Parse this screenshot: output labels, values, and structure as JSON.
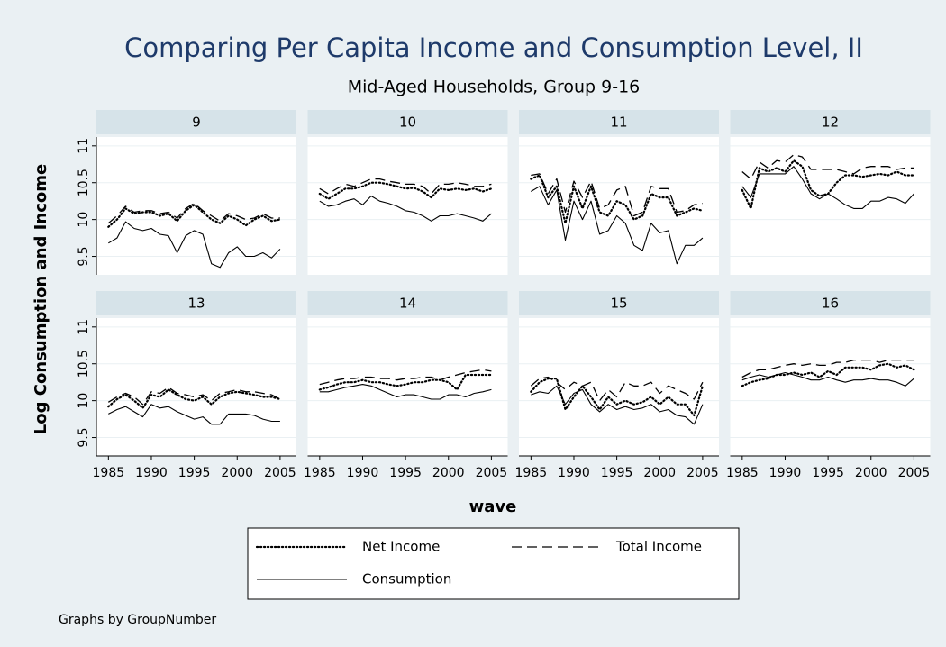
{
  "title": "Comparing Per Capita Income and Consumption Level, II",
  "subtitle": "Mid-Aged Households, Group 9-16",
  "y_label": "Log Consumption and Income",
  "x_label": "wave",
  "note": "Graphs by GroupNumber",
  "chart_data": [
    {
      "type": "line",
      "title": "9",
      "x": [
        1985,
        1986,
        1987,
        1988,
        1989,
        1990,
        1991,
        1992,
        1993,
        1994,
        1995,
        1996,
        1997,
        1998,
        1999,
        2000,
        2001,
        2002,
        2003,
        2004,
        2005
      ],
      "xlim": [
        1983.6,
        2006.9
      ],
      "xticks": [
        1985,
        1990,
        1995,
        2000,
        2005
      ],
      "ylim": [
        9.25,
        11.12
      ],
      "yticks": [
        9.5,
        10,
        10.5,
        11
      ],
      "grid": true,
      "series": [
        {
          "name": "Net Income",
          "color": "#000000",
          "linestyle": "dotted",
          "values": [
            9.9,
            10.0,
            10.15,
            10.08,
            10.1,
            10.1,
            10.05,
            10.08,
            9.98,
            10.12,
            10.2,
            10.1,
            10.0,
            9.95,
            10.05,
            10.0,
            9.92,
            10.0,
            10.05,
            9.98,
            10.0
          ]
        },
        {
          "name": "Total Income",
          "color": "#000000",
          "linestyle": "dashed",
          "values": [
            9.95,
            10.05,
            10.18,
            10.1,
            10.12,
            10.12,
            10.08,
            10.1,
            10.02,
            10.15,
            10.22,
            10.12,
            10.05,
            9.98,
            10.08,
            10.05,
            10.0,
            10.02,
            10.08,
            10.02,
            10.02
          ]
        },
        {
          "name": "Consumption",
          "color": "#000000",
          "linestyle": "solid",
          "values": [
            9.68,
            9.75,
            9.97,
            9.88,
            9.85,
            9.88,
            9.8,
            9.78,
            9.55,
            9.78,
            9.85,
            9.8,
            9.4,
            9.35,
            9.55,
            9.63,
            9.5,
            9.5,
            9.55,
            9.48,
            9.6
          ]
        }
      ]
    },
    {
      "type": "line",
      "title": "10",
      "x": [
        1985,
        1986,
        1987,
        1988,
        1989,
        1990,
        1991,
        1992,
        1993,
        1994,
        1995,
        1996,
        1997,
        1998,
        1999,
        2000,
        2001,
        2002,
        2003,
        2004,
        2005
      ],
      "xlim": [
        1983.6,
        2006.9
      ],
      "xticks": [
        1985,
        1990,
        1995,
        2000,
        2005
      ],
      "ylim": [
        9.25,
        11.12
      ],
      "yticks": [
        9.5,
        10,
        10.5,
        11
      ],
      "grid": true,
      "series": [
        {
          "name": "Net Income",
          "color": "#000000",
          "linestyle": "dotted",
          "values": [
            10.35,
            10.28,
            10.35,
            10.42,
            10.42,
            10.45,
            10.5,
            10.5,
            10.48,
            10.45,
            10.42,
            10.43,
            10.38,
            10.3,
            10.42,
            10.4,
            10.42,
            10.4,
            10.42,
            10.38,
            10.42
          ]
        },
        {
          "name": "Total Income",
          "color": "#000000",
          "linestyle": "dashed",
          "values": [
            10.42,
            10.35,
            10.42,
            10.48,
            10.45,
            10.5,
            10.55,
            10.55,
            10.52,
            10.5,
            10.48,
            10.48,
            10.45,
            10.35,
            10.48,
            10.48,
            10.5,
            10.48,
            10.45,
            10.45,
            10.48
          ]
        },
        {
          "name": "Consumption",
          "color": "#000000",
          "linestyle": "solid",
          "values": [
            10.25,
            10.18,
            10.2,
            10.25,
            10.28,
            10.2,
            10.32,
            10.25,
            10.22,
            10.18,
            10.12,
            10.1,
            10.05,
            9.98,
            10.05,
            10.05,
            10.08,
            10.05,
            10.02,
            9.98,
            10.08
          ]
        }
      ]
    },
    {
      "type": "line",
      "title": "11",
      "x": [
        1985,
        1986,
        1987,
        1988,
        1989,
        1990,
        1991,
        1992,
        1993,
        1994,
        1995,
        1996,
        1997,
        1998,
        1999,
        2000,
        2001,
        2002,
        2003,
        2004,
        2005
      ],
      "xlim": [
        1983.6,
        2006.9
      ],
      "xticks": [
        1985,
        1990,
        1995,
        2000,
        2005
      ],
      "ylim": [
        9.25,
        11.12
      ],
      "yticks": [
        9.5,
        10,
        10.5,
        11
      ],
      "grid": true,
      "series": [
        {
          "name": "Net Income",
          "color": "#000000",
          "linestyle": "dotted",
          "values": [
            10.55,
            10.6,
            10.3,
            10.45,
            9.95,
            10.45,
            10.15,
            10.45,
            10.1,
            10.05,
            10.25,
            10.2,
            10.0,
            10.05,
            10.35,
            10.3,
            10.3,
            10.05,
            10.1,
            10.15,
            10.12
          ]
        },
        {
          "name": "Total Income",
          "color": "#000000",
          "linestyle": "dashed",
          "values": [
            10.6,
            10.62,
            10.35,
            10.55,
            10.1,
            10.52,
            10.3,
            10.52,
            10.15,
            10.2,
            10.4,
            10.45,
            10.05,
            10.1,
            10.45,
            10.42,
            10.42,
            10.1,
            10.12,
            10.2,
            10.22
          ]
        },
        {
          "name": "Consumption",
          "color": "#000000",
          "linestyle": "solid",
          "values": [
            10.38,
            10.45,
            10.2,
            10.4,
            9.72,
            10.25,
            10.0,
            10.25,
            9.8,
            9.85,
            10.05,
            9.95,
            9.65,
            9.58,
            9.95,
            9.82,
            9.85,
            9.4,
            9.65,
            9.65,
            9.75
          ]
        }
      ]
    },
    {
      "type": "line",
      "title": "12",
      "x": [
        1985,
        1986,
        1987,
        1988,
        1989,
        1990,
        1991,
        1992,
        1993,
        1994,
        1995,
        1996,
        1997,
        1998,
        1999,
        2000,
        2001,
        2002,
        2003,
        2004,
        2005
      ],
      "xlim": [
        1983.6,
        2006.9
      ],
      "xticks": [
        1985,
        1990,
        1995,
        2000,
        2005
      ],
      "ylim": [
        9.25,
        11.12
      ],
      "yticks": [
        9.5,
        10,
        10.5,
        11
      ],
      "grid": true,
      "series": [
        {
          "name": "Net Income",
          "color": "#000000",
          "linestyle": "dotted",
          "values": [
            10.4,
            10.15,
            10.7,
            10.65,
            10.7,
            10.65,
            10.8,
            10.72,
            10.4,
            10.32,
            10.35,
            10.5,
            10.6,
            10.6,
            10.58,
            10.6,
            10.62,
            10.6,
            10.65,
            10.6,
            10.6
          ]
        },
        {
          "name": "Total Income",
          "color": "#000000",
          "linestyle": "dashed",
          "values": [
            10.65,
            10.55,
            10.78,
            10.7,
            10.8,
            10.78,
            10.88,
            10.85,
            10.68,
            10.68,
            10.68,
            10.68,
            10.65,
            10.62,
            10.7,
            10.72,
            10.72,
            10.72,
            10.68,
            10.7,
            10.7
          ]
        },
        {
          "name": "Consumption",
          "color": "#000000",
          "linestyle": "solid",
          "values": [
            10.45,
            10.3,
            10.62,
            10.62,
            10.62,
            10.62,
            10.72,
            10.55,
            10.35,
            10.28,
            10.35,
            10.28,
            10.2,
            10.15,
            10.15,
            10.25,
            10.25,
            10.3,
            10.28,
            10.22,
            10.35
          ]
        }
      ]
    },
    {
      "type": "line",
      "title": "13",
      "x": [
        1985,
        1986,
        1987,
        1988,
        1989,
        1990,
        1991,
        1992,
        1993,
        1994,
        1995,
        1996,
        1997,
        1998,
        1999,
        2000,
        2001,
        2002,
        2003,
        2004,
        2005
      ],
      "xlim": [
        1983.6,
        2006.9
      ],
      "xticks": [
        1985,
        1990,
        1995,
        2000,
        2005
      ],
      "ylim": [
        9.25,
        11.12
      ],
      "yticks": [
        9.5,
        10,
        10.5,
        11
      ],
      "grid": true,
      "series": [
        {
          "name": "Net Income",
          "color": "#000000",
          "linestyle": "dotted",
          "values": [
            9.92,
            10.02,
            10.08,
            10.0,
            9.9,
            10.08,
            10.05,
            10.15,
            10.08,
            10.02,
            10.0,
            10.05,
            9.95,
            10.05,
            10.1,
            10.12,
            10.1,
            10.08,
            10.05,
            10.05,
            10.02
          ]
        },
        {
          "name": "Total Income",
          "color": "#000000",
          "linestyle": "dashed",
          "values": [
            9.98,
            10.05,
            10.1,
            10.05,
            9.95,
            10.12,
            10.1,
            10.18,
            10.1,
            10.08,
            10.05,
            10.08,
            10.0,
            10.1,
            10.12,
            10.15,
            10.12,
            10.12,
            10.1,
            10.08,
            10.02
          ]
        },
        {
          "name": "Consumption",
          "color": "#000000",
          "linestyle": "solid",
          "values": [
            9.82,
            9.88,
            9.92,
            9.85,
            9.78,
            9.95,
            9.9,
            9.92,
            9.85,
            9.8,
            9.75,
            9.78,
            9.68,
            9.68,
            9.82,
            9.82,
            9.82,
            9.8,
            9.75,
            9.72,
            9.72
          ]
        }
      ]
    },
    {
      "type": "line",
      "title": "14",
      "x": [
        1985,
        1986,
        1987,
        1988,
        1989,
        1990,
        1991,
        1992,
        1993,
        1994,
        1995,
        1996,
        1997,
        1998,
        1999,
        2000,
        2001,
        2002,
        2003,
        2004,
        2005
      ],
      "xlim": [
        1983.6,
        2006.9
      ],
      "xticks": [
        1985,
        1990,
        1995,
        2000,
        2005
      ],
      "ylim": [
        9.25,
        11.12
      ],
      "yticks": [
        9.5,
        10,
        10.5,
        11
      ],
      "grid": true,
      "series": [
        {
          "name": "Net Income",
          "color": "#000000",
          "linestyle": "dotted",
          "values": [
            10.15,
            10.18,
            10.22,
            10.25,
            10.25,
            10.28,
            10.25,
            10.25,
            10.22,
            10.2,
            10.22,
            10.25,
            10.25,
            10.28,
            10.28,
            10.25,
            10.15,
            10.35,
            10.35,
            10.35,
            10.35
          ]
        },
        {
          "name": "Total Income",
          "color": "#000000",
          "linestyle": "dashed",
          "values": [
            10.22,
            10.25,
            10.28,
            10.3,
            10.3,
            10.32,
            10.32,
            10.3,
            10.3,
            10.28,
            10.3,
            10.3,
            10.32,
            10.32,
            10.28,
            10.32,
            10.35,
            10.38,
            10.4,
            10.42,
            10.4
          ]
        },
        {
          "name": "Consumption",
          "color": "#000000",
          "linestyle": "solid",
          "values": [
            10.12,
            10.12,
            10.15,
            10.18,
            10.2,
            10.22,
            10.2,
            10.15,
            10.1,
            10.05,
            10.08,
            10.08,
            10.05,
            10.02,
            10.02,
            10.08,
            10.08,
            10.05,
            10.1,
            10.12,
            10.15
          ]
        }
      ]
    },
    {
      "type": "line",
      "title": "15",
      "x": [
        1985,
        1986,
        1987,
        1988,
        1989,
        1990,
        1991,
        1992,
        1993,
        1994,
        1995,
        1996,
        1997,
        1998,
        1999,
        2000,
        2001,
        2002,
        2003,
        2004,
        2005
      ],
      "xlim": [
        1983.6,
        2006.9
      ],
      "xticks": [
        1985,
        1990,
        1995,
        2000,
        2005
      ],
      "ylim": [
        9.25,
        11.12
      ],
      "yticks": [
        9.5,
        10,
        10.5,
        11
      ],
      "grid": true,
      "series": [
        {
          "name": "Net Income",
          "color": "#000000",
          "linestyle": "dotted",
          "values": [
            10.12,
            10.25,
            10.3,
            10.3,
            9.88,
            10.05,
            10.2,
            10.05,
            9.88,
            10.05,
            9.95,
            10.0,
            9.95,
            9.98,
            10.05,
            9.95,
            10.05,
            9.95,
            9.95,
            9.8,
            10.2
          ]
        },
        {
          "name": "Total Income",
          "color": "#000000",
          "linestyle": "dashed",
          "values": [
            10.2,
            10.3,
            10.32,
            10.25,
            10.15,
            10.25,
            10.2,
            10.25,
            10.0,
            10.15,
            10.05,
            10.25,
            10.2,
            10.2,
            10.25,
            10.1,
            10.2,
            10.15,
            10.1,
            10.02,
            10.25
          ]
        },
        {
          "name": "Consumption",
          "color": "#000000",
          "linestyle": "solid",
          "values": [
            10.08,
            10.12,
            10.1,
            10.2,
            9.95,
            10.1,
            10.15,
            9.95,
            9.85,
            9.95,
            9.88,
            9.92,
            9.88,
            9.9,
            9.95,
            9.85,
            9.88,
            9.8,
            9.78,
            9.68,
            9.95
          ]
        }
      ]
    },
    {
      "type": "line",
      "title": "16",
      "x": [
        1985,
        1986,
        1987,
        1988,
        1989,
        1990,
        1991,
        1992,
        1993,
        1994,
        1995,
        1996,
        1997,
        1998,
        1999,
        2000,
        2001,
        2002,
        2003,
        2004,
        2005
      ],
      "xlim": [
        1983.6,
        2006.9
      ],
      "xticks": [
        1985,
        1990,
        1995,
        2000,
        2005
      ],
      "ylim": [
        9.25,
        11.12
      ],
      "yticks": [
        9.5,
        10,
        10.5,
        11
      ],
      "grid": true,
      "series": [
        {
          "name": "Net Income",
          "color": "#000000",
          "linestyle": "dotted",
          "values": [
            10.2,
            10.25,
            10.28,
            10.3,
            10.35,
            10.35,
            10.38,
            10.35,
            10.38,
            10.32,
            10.4,
            10.35,
            10.45,
            10.45,
            10.45,
            10.42,
            10.48,
            10.5,
            10.45,
            10.48,
            10.42
          ]
        },
        {
          "name": "Total Income",
          "color": "#000000",
          "linestyle": "dashed",
          "values": [
            10.32,
            10.38,
            10.42,
            10.42,
            10.45,
            10.48,
            10.5,
            10.48,
            10.5,
            10.48,
            10.48,
            10.52,
            10.52,
            10.55,
            10.55,
            10.55,
            10.52,
            10.55,
            10.55,
            10.55,
            10.55
          ]
        },
        {
          "name": "Consumption",
          "color": "#000000",
          "linestyle": "solid",
          "values": [
            10.28,
            10.32,
            10.35,
            10.32,
            10.35,
            10.38,
            10.35,
            10.32,
            10.28,
            10.28,
            10.32,
            10.28,
            10.25,
            10.28,
            10.28,
            10.3,
            10.28,
            10.28,
            10.25,
            10.2,
            10.3
          ]
        }
      ]
    }
  ]
}
